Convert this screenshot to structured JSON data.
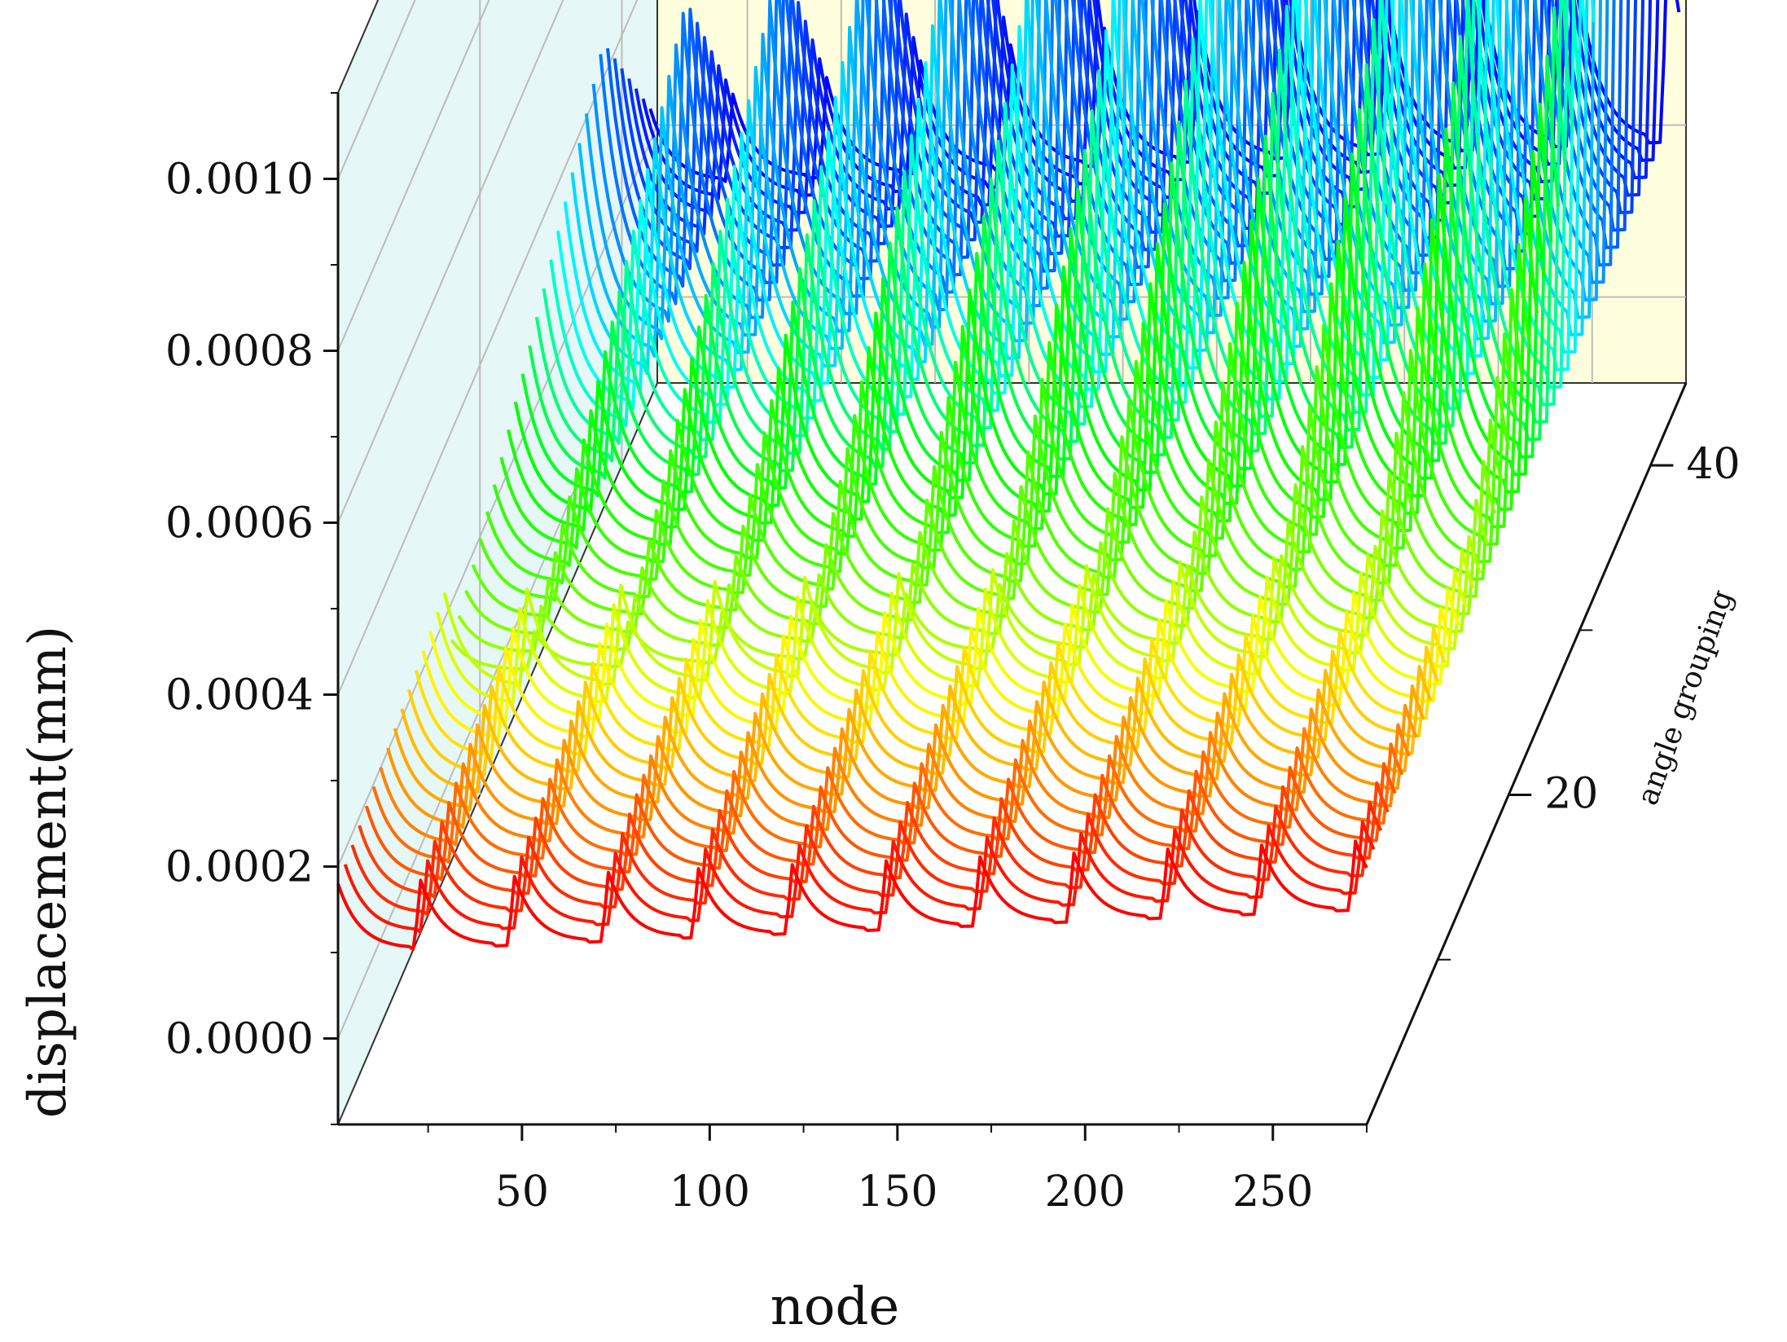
{
  "chart_data": {
    "type": "line",
    "style": "3d-waterfall",
    "title": "",
    "xlabel": "node",
    "ylabel": "angle grouping",
    "zlabel": "displacement(mm)",
    "xlim": [
      1,
      275
    ],
    "ylim": [
      0,
      45
    ],
    "zlim": [
      -0.0001,
      0.0011
    ],
    "x_ticks": [
      50,
      100,
      150,
      200,
      250
    ],
    "x_tick_labels": [
      "50",
      "100",
      "150",
      "200",
      "250"
    ],
    "y_ticks": [
      20,
      40
    ],
    "y_tick_labels": [
      "20",
      "40"
    ],
    "z_ticks": [
      0,
      0.0002,
      0.0004,
      0.0006,
      0.0008,
      0.001
    ],
    "z_tick_labels": [
      "0.0000",
      "0.0002",
      "0.0004",
      "0.0006",
      "0.0008",
      "0.0010"
    ],
    "series_count": 45,
    "colormap": [
      "#ff0000",
      "#ff8800",
      "#ffff00",
      "#66ff00",
      "#00ff00",
      "#00ffff",
      "#0066ff",
      "#0000ff"
    ],
    "pattern": {
      "peak_nodes": [
        1,
        23,
        48,
        73,
        97,
        122,
        147,
        172,
        197,
        222,
        247,
        272
      ],
      "baseline_displacement": [
        0.0001,
        0.0002
      ],
      "max_peak_displacement": 0.00105,
      "peak_growth_along_node": "increasing"
    },
    "grid": true,
    "back_wall_color": "#ffffdd",
    "side_wall_color": "#e6f7f7",
    "legend": "none"
  }
}
